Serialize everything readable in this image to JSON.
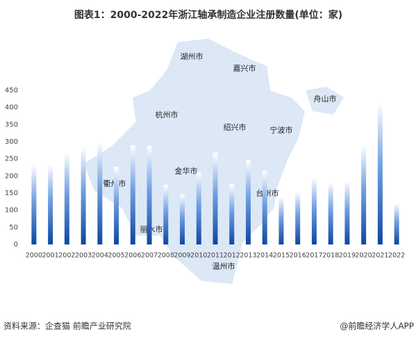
{
  "chart_data": {
    "type": "bar",
    "title": "图表1：2000-2022年浙江轴承制造企业注册数量(单位：家)",
    "categories": [
      "2000",
      "2001",
      "2002",
      "2003",
      "2004",
      "2005",
      "2006",
      "2007",
      "2008",
      "2009",
      "2010",
      "2011",
      "2012",
      "2013",
      "2014",
      "2015",
      "2016",
      "2017",
      "2018",
      "2019",
      "2020",
      "2021",
      "2022"
    ],
    "values": [
      233,
      233,
      268,
      284,
      298,
      227,
      290,
      288,
      174,
      146,
      211,
      268,
      176,
      247,
      215,
      138,
      154,
      195,
      181,
      185,
      290,
      414,
      120
    ],
    "color": "#0d47a1",
    "ylim": [
      0,
      450
    ],
    "yticks": [
      0,
      50,
      100,
      150,
      200,
      250,
      300,
      350,
      400,
      450
    ],
    "grid": false,
    "map_labels": [
      "湖州市",
      "嘉兴市",
      "舟山市",
      "杭州市",
      "绍兴市",
      "宁波市",
      "金华市",
      "衢州市",
      "台州市",
      "丽水市",
      "温州市"
    ],
    "source": "资料来源：企查猫 前瞻产业研究院",
    "brand": "@前瞻经济学人APP"
  }
}
